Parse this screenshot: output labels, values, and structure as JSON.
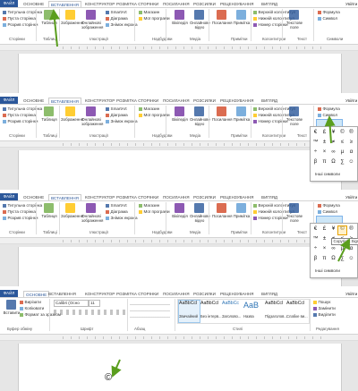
{
  "tabs": [
    "ФАЙЛ",
    "ОСНОВНЕ",
    "ВСТАВЛЕННЯ",
    "КОНСТРУКТОР",
    "РОЗМІТКА СТОРІНКИ",
    "ПОСИЛАННЯ",
    "РОЗСИЛКИ",
    "РЕЦЕНЗУВАННЯ",
    "ВИГЛЯД"
  ],
  "account": "Увійти",
  "insert_ribbon": {
    "groups": [
      "Сторінки",
      "Таблиці",
      "Ілюстрації",
      "Надбудови",
      "Медіа",
      "Примітки",
      "Колонтитули",
      "Текст",
      "Символи"
    ],
    "buttons": [
      "Титульна сторінка",
      "Пуста сторінка",
      "Розрив сторінки",
      "Таблиця",
      "Зображення",
      "Онлайнові зображення",
      "SmartArt",
      "Діаграма",
      "Знімок екрана",
      "Магазин",
      "Мої програми",
      "Вікіпедія",
      "Онлайнове відео",
      "Посилання",
      "Примітка",
      "Верхній колонтитул",
      "Нижній колонтитул",
      "Номер сторінки",
      "Текстове поле",
      "Формула",
      "Символ"
    ]
  },
  "symbol_menu": {
    "symbols": [
      "€",
      "£",
      "¥",
      "©",
      "®",
      "™",
      "±",
      "≠",
      "≤",
      "≥",
      "÷",
      "×",
      "∞",
      "µ",
      "α",
      "β",
      "π",
      "Ω",
      "∑",
      "☺"
    ],
    "more": "Інші символи"
  },
  "tooltip": "Copyright Sign",
  "home_ribbon": {
    "groups": [
      "Буфер обміну",
      "Шрифт",
      "Абзац",
      "Стилі",
      "Редагування"
    ],
    "buttons": [
      "Вставити",
      "Вирізати",
      "Копіювати",
      "Формат за зразком",
      "Пошук",
      "Замінити",
      "Виділити"
    ],
    "font": "Calibri (Осно",
    "size": "11",
    "styles": [
      {
        "sample": "AaBbCcI",
        "name": "Звичайний"
      },
      {
        "sample": "AaBbCcI",
        "name": "Без інтерв..."
      },
      {
        "sample": "AaBbCc",
        "name": "Заголово..."
      },
      {
        "sample": "AaB",
        "name": "Назва"
      },
      {
        "sample": "AaBbCcI",
        "name": "Підзаголов..."
      },
      {
        "sample": "AaBbCcI",
        "name": "Слабке ви..."
      }
    ]
  },
  "document_symbol": "©"
}
